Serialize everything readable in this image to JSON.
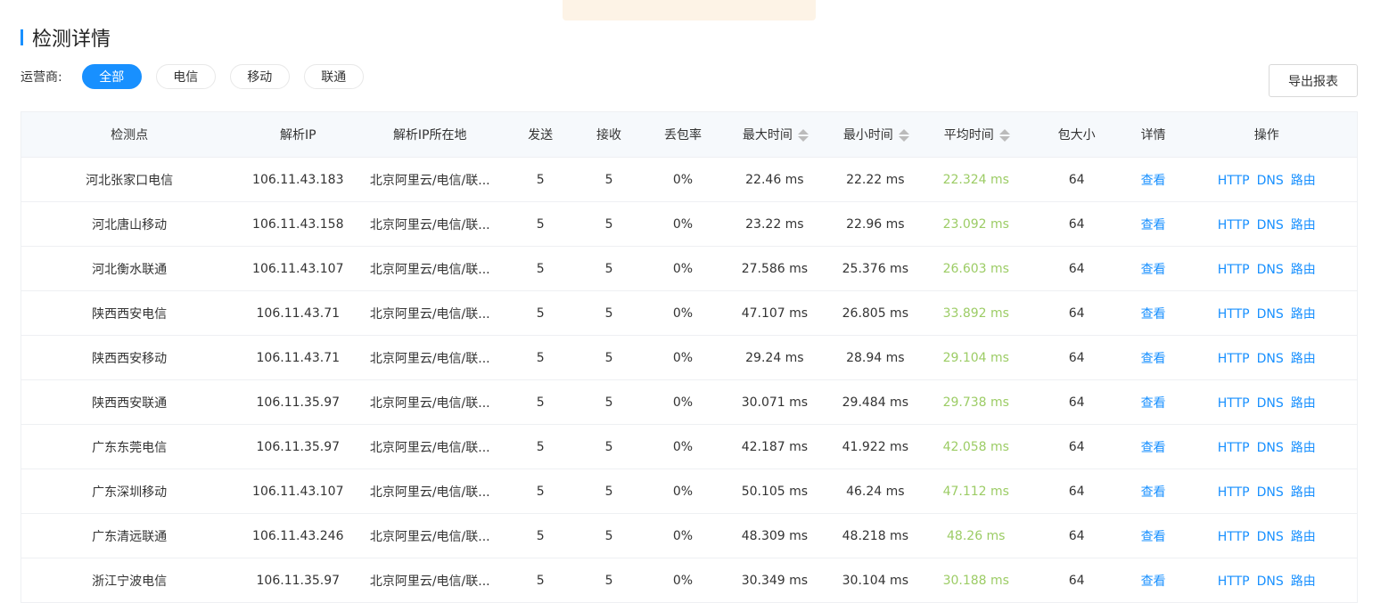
{
  "section_title": "检测详情",
  "filter": {
    "label": "运营商:",
    "options": [
      "全部",
      "电信",
      "移动",
      "联通"
    ],
    "selected": "全部"
  },
  "export_label": "导出报表",
  "colors": {
    "accent": "#1890ff",
    "avg_time": "#9ccc65"
  },
  "table": {
    "headers": [
      "检测点",
      "解析IP",
      "解析IP所在地",
      "发送",
      "接收",
      "丢包率",
      "最大时间",
      "最小时间",
      "平均时间",
      "包大小",
      "详情",
      "操作"
    ],
    "sortable": [
      "最大时间",
      "最小时间",
      "平均时间"
    ],
    "detail_label": "查看",
    "actions": [
      "HTTP",
      "DNS",
      "路由"
    ],
    "rows": [
      [
        "河北张家口电信",
        "106.11.43.183",
        "北京阿里云/电信/联...",
        "5",
        "5",
        "0%",
        "22.46 ms",
        "22.22 ms",
        "22.324 ms",
        "64"
      ],
      [
        "河北唐山移动",
        "106.11.43.158",
        "北京阿里云/电信/联...",
        "5",
        "5",
        "0%",
        "23.22 ms",
        "22.96 ms",
        "23.092 ms",
        "64"
      ],
      [
        "河北衡水联通",
        "106.11.43.107",
        "北京阿里云/电信/联...",
        "5",
        "5",
        "0%",
        "27.586 ms",
        "25.376 ms",
        "26.603 ms",
        "64"
      ],
      [
        "陕西西安电信",
        "106.11.43.71",
        "北京阿里云/电信/联...",
        "5",
        "5",
        "0%",
        "47.107 ms",
        "26.805 ms",
        "33.892 ms",
        "64"
      ],
      [
        "陕西西安移动",
        "106.11.43.71",
        "北京阿里云/电信/联...",
        "5",
        "5",
        "0%",
        "29.24 ms",
        "28.94 ms",
        "29.104 ms",
        "64"
      ],
      [
        "陕西西安联通",
        "106.11.35.97",
        "北京阿里云/电信/联...",
        "5",
        "5",
        "0%",
        "30.071 ms",
        "29.484 ms",
        "29.738 ms",
        "64"
      ],
      [
        "广东东莞电信",
        "106.11.35.97",
        "北京阿里云/电信/联...",
        "5",
        "5",
        "0%",
        "42.187 ms",
        "41.922 ms",
        "42.058 ms",
        "64"
      ],
      [
        "广东深圳移动",
        "106.11.43.107",
        "北京阿里云/电信/联...",
        "5",
        "5",
        "0%",
        "50.105 ms",
        "46.24 ms",
        "47.112 ms",
        "64"
      ],
      [
        "广东清远联通",
        "106.11.43.246",
        "北京阿里云/电信/联...",
        "5",
        "5",
        "0%",
        "48.309 ms",
        "48.218 ms",
        "48.26 ms",
        "64"
      ],
      [
        "浙江宁波电信",
        "106.11.35.97",
        "北京阿里云/电信/联...",
        "5",
        "5",
        "0%",
        "30.349 ms",
        "30.104 ms",
        "30.188 ms",
        "64"
      ]
    ]
  }
}
